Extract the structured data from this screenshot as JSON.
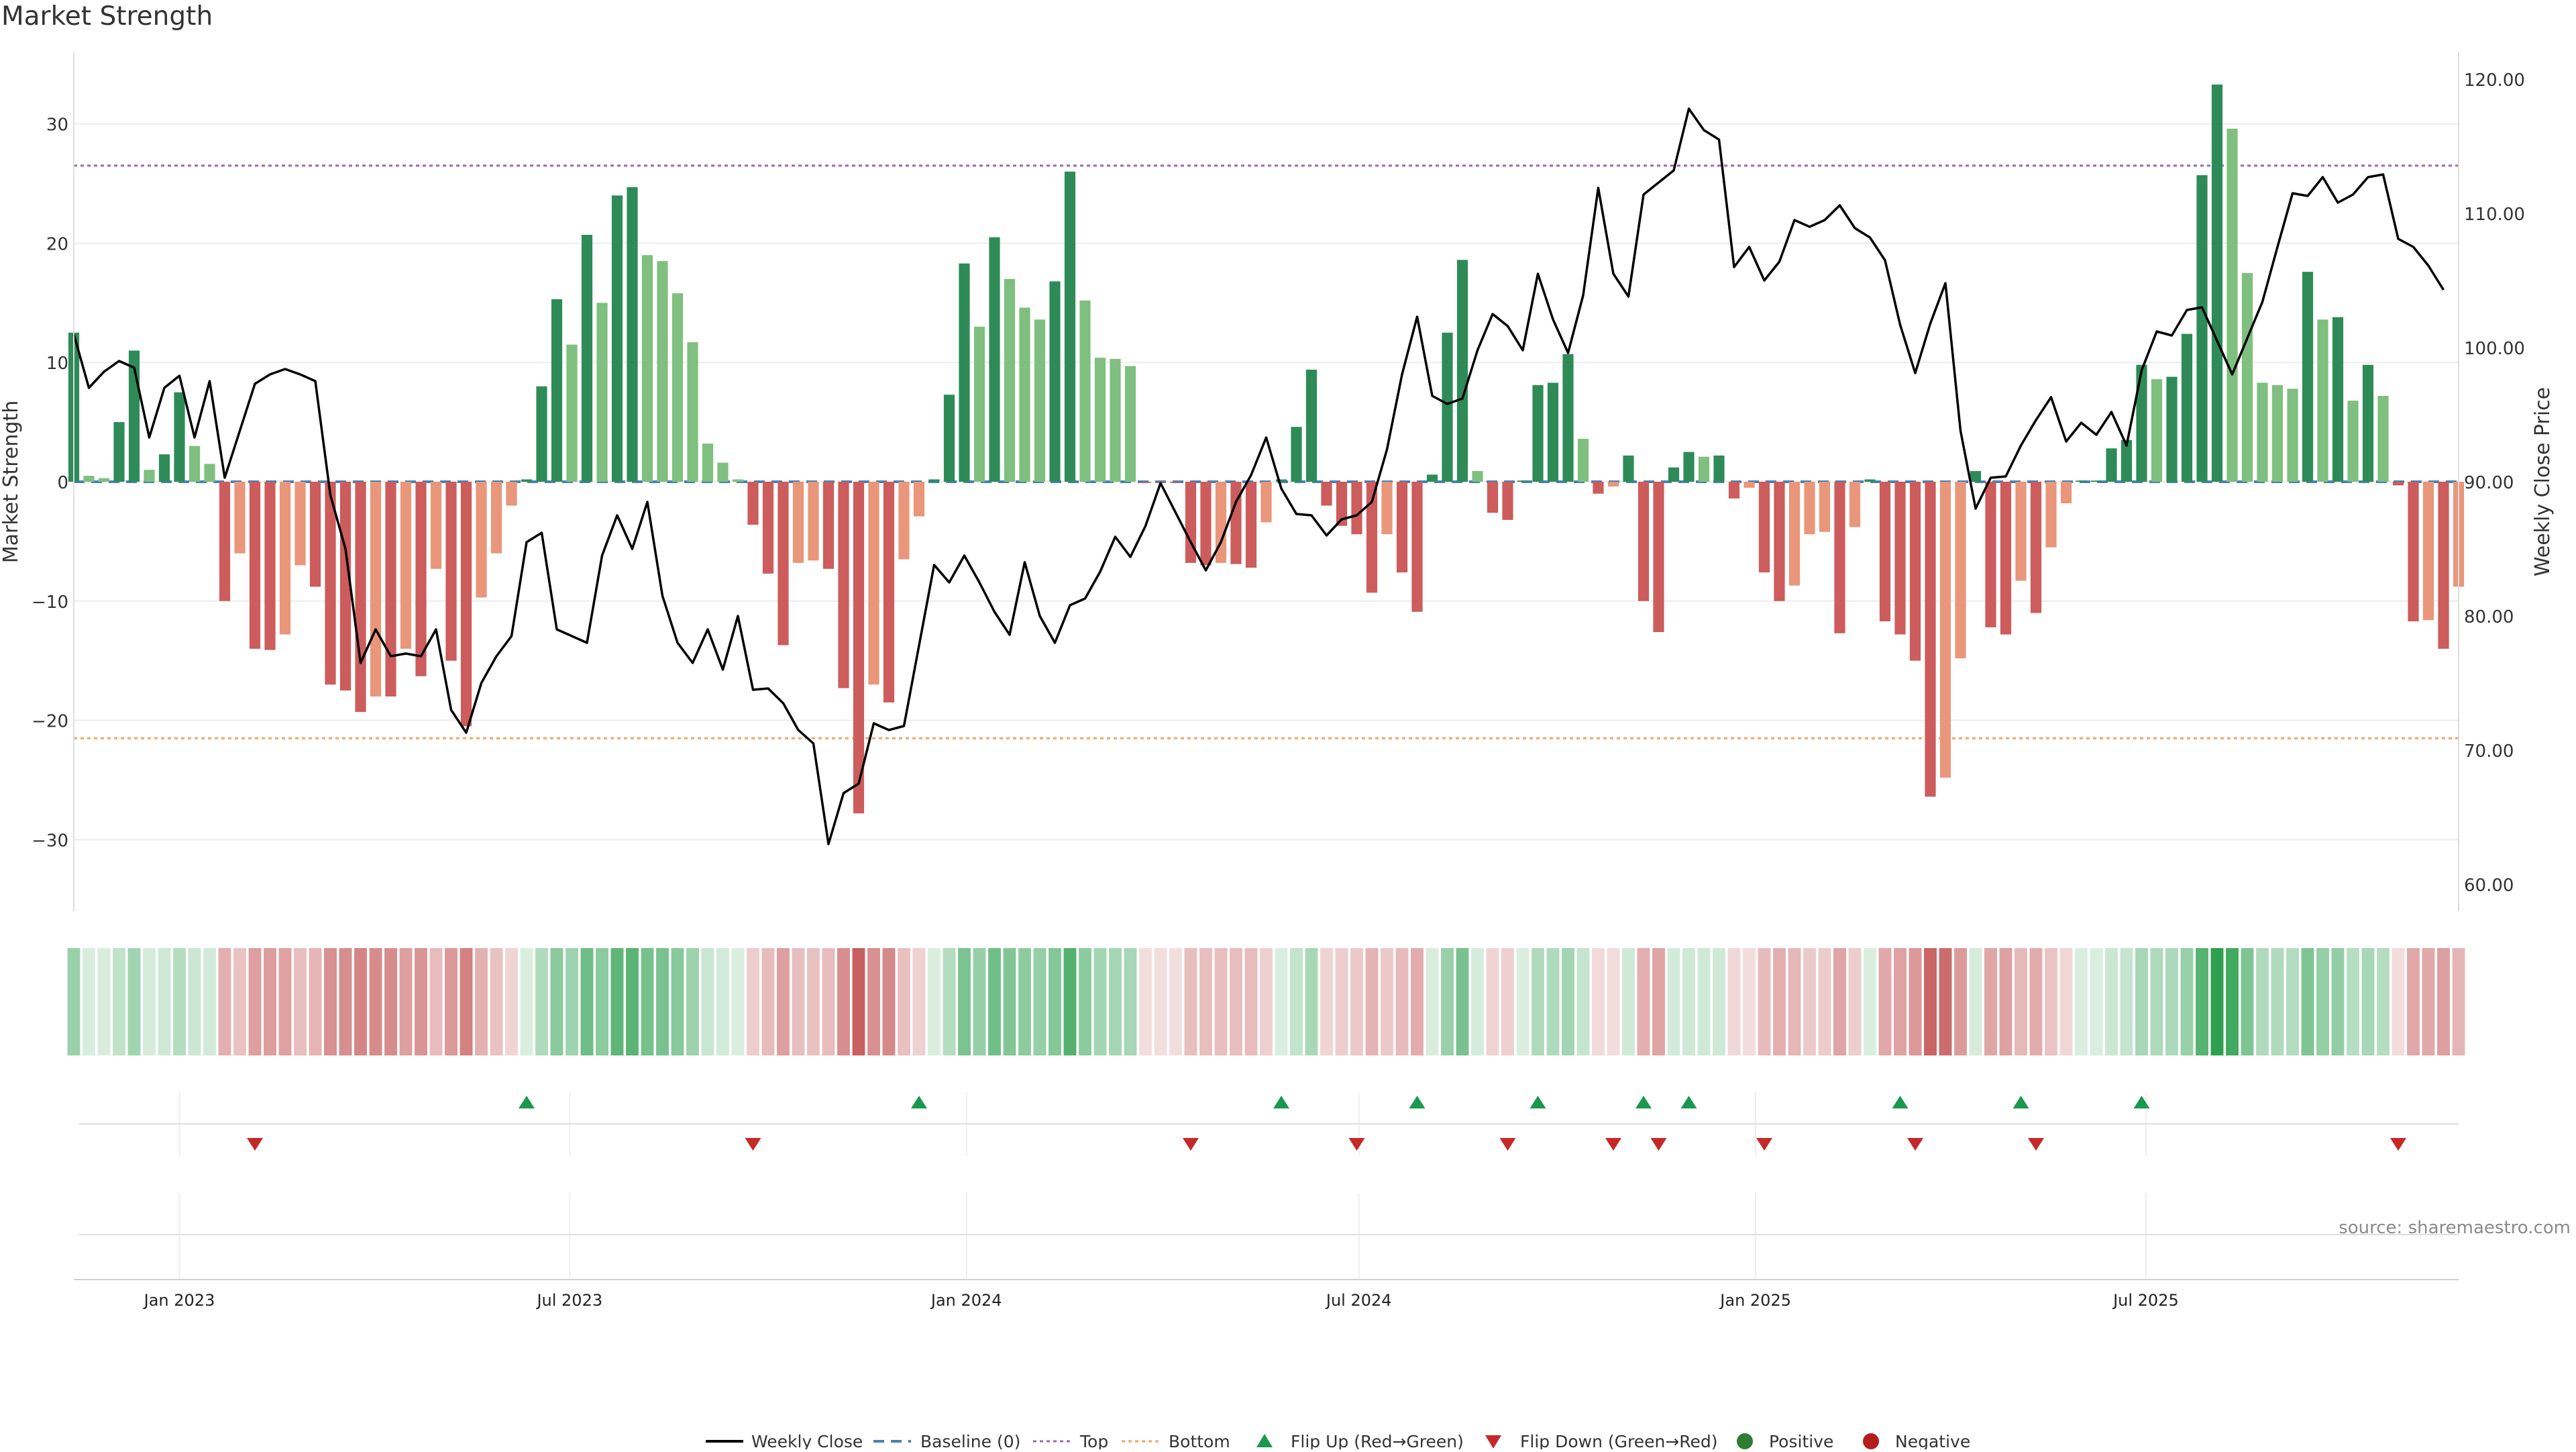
{
  "title": "Market Strength",
  "source": "source: sharemaestro.com",
  "colors": {
    "pos_strong": "#2e8b57",
    "pos_weak": "#7fbf7f",
    "neg_strong": "#cd5c5c",
    "neg_weak": "#e9967a",
    "close_line": "#000000",
    "baseline": "#4682b4",
    "top": "#9467bd",
    "bottom": "#f4a460",
    "flip_up": "#1a9850",
    "flip_down": "#c62828"
  },
  "chart_data": {
    "type": "bar",
    "ylabel_left": "Market Strength",
    "ylabel_right": "Weekly Close Price",
    "ylim_left": [
      -36,
      36
    ],
    "ylim_right": [
      58,
      122
    ],
    "yticks_left": [
      30,
      20,
      10,
      0,
      -10,
      -20,
      -30
    ],
    "ytick_labels_left": [
      "30",
      "20",
      "10",
      "0",
      "−10",
      "−20",
      "−30"
    ],
    "yticks_right": [
      120,
      110,
      100,
      90,
      80,
      70,
      60
    ],
    "ytick_labels_right": [
      "120.00",
      "110.00",
      "100.00",
      "90.00",
      "80.00",
      "70.00",
      "60.00"
    ],
    "x_start": "2022-11-13",
    "x_end": "2025-11-23",
    "xticks": [
      "2023-01-01",
      "2023-07-01",
      "2024-01-01",
      "2024-07-01",
      "2025-01-01",
      "2025-07-01"
    ],
    "xtick_labels": [
      "Jan 2023",
      "Jul 2023",
      "Jan 2024",
      "Jul 2024",
      "Jan 2025",
      "Jul 2025"
    ],
    "top_level": 26.5,
    "bottom_level": -21.5,
    "grid": true,
    "legend_position": "bottom-center",
    "legend": [
      "Weekly Close",
      "Baseline (0)",
      "Top",
      "Bottom",
      "Flip Up (Red→Green)",
      "Flip Down (Green→Red)",
      "Positive",
      "Negative"
    ],
    "weeks_start": "2022-11-13",
    "strength": [
      12.5,
      0.5,
      0.3,
      5,
      11,
      1,
      2.3,
      7.5,
      3,
      1.5,
      -10,
      -6,
      -14,
      -14.1,
      -12.8,
      -7,
      -8.8,
      -17,
      -17.5,
      -19.3,
      -18,
      -18,
      -14,
      -16.3,
      -7.3,
      -15,
      -20.5,
      -9.7,
      -6,
      -2,
      0.2,
      8,
      15.3,
      11.5,
      20.7,
      15,
      24,
      24.7,
      19,
      18.5,
      15.8,
      11.7,
      3.2,
      1.6,
      0.2,
      -3.6,
      -7.7,
      -13.7,
      -6.8,
      -6.6,
      -7.3,
      -17.3,
      -27.8,
      -17,
      -18.5,
      -6.5,
      -2.9,
      0.2,
      7.3,
      18.3,
      13,
      20.5,
      17,
      14.6,
      13.6,
      16.8,
      26,
      15.2,
      10.4,
      10.3,
      9.7,
      -0.1,
      -0.1,
      -0.1,
      -6.8,
      -7,
      -6.8,
      -6.9,
      -7.2,
      -3.4,
      0.2,
      4.6,
      9.4,
      -2,
      -3.7,
      -4.4,
      -9.3,
      -4.4,
      -7.6,
      -10.9,
      0.6,
      12.5,
      18.6,
      0.9,
      -2.6,
      -3.2,
      0.1,
      8.1,
      8.3,
      10.7,
      3.6,
      -1,
      -0.4,
      2.2,
      -10,
      -12.6,
      1.2,
      2.5,
      2.1,
      2.2,
      -1.4,
      -0.5,
      -7.6,
      -10,
      -8.7,
      -4.4,
      -4.2,
      -12.7,
      -3.8,
      0.2,
      -11.7,
      -12.8,
      -15,
      -26.4,
      -24.8,
      -14.8,
      0.9,
      -12.2,
      -12.8,
      -8.3,
      -11,
      -5.5,
      -1.8,
      0.1,
      0.1,
      2.8,
      3.5,
      9.8,
      8.6,
      8.8,
      12.4,
      25.7,
      33.3,
      29.6,
      17.5,
      8.3,
      8.1,
      7.8,
      17.6,
      13.6,
      13.8,
      6.8,
      9.8,
      7.2,
      -0.3,
      -11.7,
      -11.6,
      -14,
      -8.8
    ],
    "close": [
      101,
      97,
      98.2,
      99,
      98.5,
      93.3,
      97,
      97.9,
      93.3,
      97.5,
      90.3,
      93.8,
      97.3,
      98,
      98.4,
      98,
      97.5,
      89,
      85,
      76.5,
      79,
      77,
      77.2,
      77,
      79,
      73,
      71.3,
      75,
      77,
      78.5,
      85.5,
      86.2,
      79,
      78.5,
      78,
      84.5,
      87.5,
      85,
      88.5,
      81.5,
      78,
      76.5,
      79,
      76,
      80,
      74.5,
      74.6,
      73.5,
      71.5,
      70.5,
      63,
      66.8,
      67.5,
      72,
      71.5,
      71.8,
      77.8,
      83.8,
      82.5,
      84.5,
      82.5,
      80.3,
      78.6,
      84,
      80,
      78,
      80.8,
      81.3,
      83.3,
      85.9,
      84.4,
      86.7,
      89.9,
      87.7,
      85.5,
      83.4,
      85.5,
      88.5,
      90.5,
      93.3,
      89.5,
      87.6,
      87.5,
      86,
      87.2,
      87.5,
      88.5,
      92.4,
      98,
      102.3,
      96.4,
      95.8,
      96.2,
      99.8,
      102.5,
      101.6,
      99.8,
      105.5,
      102.1,
      99.6,
      103.9,
      111.9,
      105.5,
      103.8,
      111.4,
      112.3,
      113.2,
      117.8,
      116.2,
      115.5,
      106,
      107.5,
      105,
      106.4,
      109.5,
      109,
      109.5,
      110.6,
      108.9,
      108.2,
      106.5,
      101.7,
      98.1,
      101.8,
      104.8,
      93.8,
      88,
      90.3,
      90.4,
      92.7,
      94.6,
      96.3,
      93,
      94.4,
      93.5,
      95.2,
      92.7,
      98.3,
      101.2,
      100.9,
      102.8,
      103,
      100.5,
      98,
      100.7,
      103.4,
      107.5,
      111.5,
      111.3,
      112.7,
      110.8,
      111.4,
      112.7,
      112.9,
      108.1,
      107.5,
      106.1,
      104.3
    ],
    "flip_up": [
      "2023-06-11",
      "2023-12-10",
      "2024-05-26",
      "2024-07-28",
      "2024-09-22",
      "2024-11-10",
      "2024-12-01",
      "2025-03-09",
      "2025-05-04",
      "2025-06-29"
    ],
    "flip_down": [
      "2023-02-05",
      "2023-09-24",
      "2024-04-14",
      "2024-06-30",
      "2024-09-08",
      "2024-10-27",
      "2024-11-17",
      "2025-01-05",
      "2025-03-16",
      "2025-05-11",
      "2025-10-26"
    ]
  }
}
